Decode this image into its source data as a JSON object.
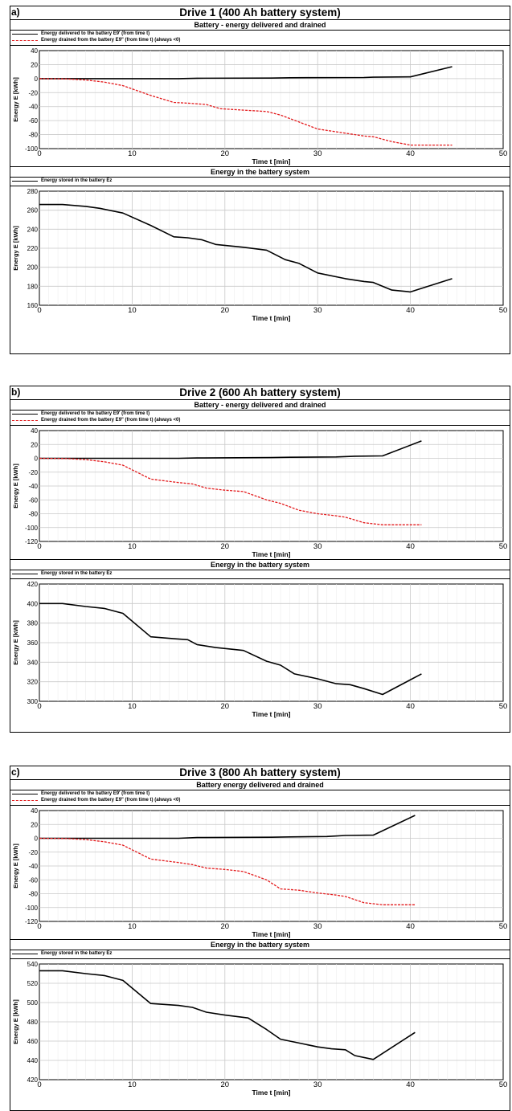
{
  "panels": [
    {
      "label": "a)",
      "title": "Drive 1 (400 Ah battery system)",
      "top_subtitle": "Battery - energy delivered and drained",
      "bottom_subtitle": "Energy in the battery system",
      "legend_top": [
        "Energy delivered to the battery E9' (from time t)",
        "Energy drained from the battery E9\" (from time t) (always <0)"
      ],
      "legend_bottom": [
        "Energy stored in the battery Ez"
      ]
    },
    {
      "label": "b)",
      "title": "Drive 2 (600 Ah battery system)",
      "top_subtitle": "Battery - energy delivered and drained",
      "bottom_subtitle": "Energy in the battery system",
      "legend_top": [
        "Energy delivered to the battery E9' (from time t)",
        "Energy drained from the battery E9\" (from time t) (always <0)"
      ],
      "legend_bottom": [
        "Energy stored in the battery Ez"
      ]
    },
    {
      "label": "c)",
      "title": "Drive 3 (800 Ah battery system)",
      "top_subtitle": "Battery energy delivered and drained",
      "bottom_subtitle": "Energy in the battery system",
      "legend_top": [
        "Energy delivered to the battery E9' (from time t)",
        "Energy drained from the battery E9\" (from time t) (always <0)"
      ],
      "legend_bottom": [
        "Energy stored in the battery Ez"
      ]
    }
  ],
  "colors": {
    "delivered": "#000000",
    "drained": "#e31a1c",
    "stored": "#000000",
    "grid": "#c8c8c8"
  },
  "chart_data": [
    {
      "type": "line",
      "panel": "a) top",
      "xlabel": "Time t [min]",
      "ylabel": "Energy E [kWh]",
      "xlim": [
        0,
        50
      ],
      "ylim": [
        -100,
        40
      ],
      "xticks": [
        0,
        10,
        20,
        30,
        40,
        50
      ],
      "yticks": [
        40,
        20,
        0,
        -20,
        -40,
        -60,
        -80,
        -100
      ],
      "grid": true,
      "legend": "top-left",
      "series": [
        {
          "name": "Energy delivered to the battery E9' (from time t)",
          "style": "solid",
          "x": [
            0,
            5,
            10,
            15,
            17,
            25,
            27,
            35,
            36,
            40,
            44.5
          ],
          "y": [
            0,
            0,
            0,
            0,
            0.5,
            0.8,
            1.2,
            1.5,
            2,
            2.5,
            17
          ]
        },
        {
          "name": "Energy drained from the battery E9\" (from time t) (always <0)",
          "style": "dashed",
          "x": [
            0,
            3,
            5,
            7,
            9,
            12,
            14.5,
            16,
            18,
            19.5,
            22,
            24.5,
            26,
            28,
            30,
            33,
            35,
            36,
            38,
            40,
            44.5
          ],
          "y": [
            0,
            -0.5,
            -2,
            -5,
            -10,
            -24,
            -34,
            -35,
            -37,
            -43,
            -45,
            -47,
            -52,
            -62,
            -72,
            -78,
            -82,
            -83,
            -90,
            -95,
            -95
          ]
        }
      ]
    },
    {
      "type": "line",
      "panel": "a) bottom",
      "xlabel": "Time t [min]",
      "ylabel": "Energy E [kWh]",
      "xlim": [
        0,
        50
      ],
      "ylim": [
        160,
        280
      ],
      "xticks": [
        0,
        10,
        20,
        30,
        40,
        50
      ],
      "yticks": [
        280,
        260,
        240,
        220,
        200,
        180,
        160
      ],
      "grid": true,
      "legend": "top-left",
      "series": [
        {
          "name": "Energy stored in the battery Ez",
          "style": "solid",
          "x": [
            0,
            2.5,
            5,
            6.5,
            9,
            12,
            14.5,
            16,
            17.5,
            19,
            22,
            24.5,
            26.5,
            28,
            30,
            33,
            35,
            36,
            38,
            40,
            44.5
          ],
          "y": [
            266,
            266,
            264,
            262,
            257,
            244,
            232,
            231,
            229,
            224,
            221,
            218,
            208,
            204,
            194,
            188,
            185,
            184,
            176,
            174,
            188
          ]
        }
      ]
    },
    {
      "type": "line",
      "panel": "b) top",
      "xlabel": "Time t [min]",
      "ylabel": "Energy E [kWh]",
      "xlim": [
        0,
        50
      ],
      "ylim": [
        -120,
        40
      ],
      "xticks": [
        0,
        10,
        20,
        30,
        40,
        50
      ],
      "yticks": [
        40,
        20,
        0,
        -20,
        -40,
        -60,
        -80,
        -100,
        -120
      ],
      "grid": true,
      "legend": "top-left",
      "series": [
        {
          "name": "Energy delivered to the battery E9' (from time t)",
          "style": "solid",
          "x": [
            0,
            5,
            10,
            15,
            17,
            25,
            27,
            32,
            34,
            37,
            41.2
          ],
          "y": [
            0,
            0,
            0,
            0,
            0.5,
            1,
            1.5,
            2,
            3,
            3.5,
            25
          ]
        },
        {
          "name": "Energy drained from the battery E9\" (from time t) (always <0)",
          "style": "dashed",
          "x": [
            0,
            3,
            5,
            7,
            9,
            12,
            15,
            16.5,
            18,
            20,
            22,
            24.5,
            26,
            28,
            30,
            32,
            33,
            35,
            37,
            40,
            41.2
          ],
          "y": [
            0,
            -0.5,
            -2,
            -5,
            -10,
            -30,
            -35,
            -37,
            -43,
            -46,
            -48,
            -60,
            -65,
            -75,
            -80,
            -83,
            -85,
            -93,
            -96,
            -96,
            -96
          ]
        }
      ]
    },
    {
      "type": "line",
      "panel": "b) bottom",
      "xlabel": "Time t [min]",
      "ylabel": "Energy E [kWh]",
      "xlim": [
        0,
        50
      ],
      "ylim": [
        300,
        420
      ],
      "xticks": [
        0,
        10,
        20,
        30,
        40,
        50
      ],
      "yticks": [
        420,
        400,
        380,
        360,
        340,
        320,
        300
      ],
      "grid": true,
      "legend": "top-left",
      "series": [
        {
          "name": "Energy stored in the battery Ez",
          "style": "solid",
          "x": [
            0,
            2.5,
            5,
            7,
            9,
            12,
            14.5,
            16,
            17,
            19,
            22,
            24.5,
            26,
            27.5,
            30,
            32,
            33.5,
            35,
            37,
            41.2
          ],
          "y": [
            400,
            400,
            397,
            395,
            390,
            366,
            364,
            363,
            358,
            355,
            352,
            341,
            337,
            328,
            323,
            318,
            317,
            313,
            307,
            328
          ]
        }
      ]
    },
    {
      "type": "line",
      "panel": "c) top",
      "xlabel": "Time t [min]",
      "ylabel": "Energy E [kWh]",
      "xlim": [
        0,
        50
      ],
      "ylim": [
        -120,
        40
      ],
      "xticks": [
        0,
        10,
        20,
        30,
        40,
        50
      ],
      "yticks": [
        40,
        20,
        0,
        -20,
        -40,
        -60,
        -80,
        -100,
        -120
      ],
      "grid": true,
      "legend": "top-left",
      "series": [
        {
          "name": "Energy delivered to the battery E9' (from time t)",
          "style": "solid",
          "x": [
            0,
            5,
            10,
            15,
            17,
            25,
            27,
            31,
            33,
            36,
            40.5
          ],
          "y": [
            0,
            0,
            0,
            0,
            1,
            1.5,
            2,
            2.5,
            4,
            4.5,
            33
          ]
        },
        {
          "name": "Energy drained from the battery E9\" (from time t) (always <0)",
          "style": "dashed",
          "x": [
            0,
            3,
            5,
            7,
            9,
            12,
            15,
            16.5,
            18,
            20,
            22,
            24.5,
            26,
            28,
            30,
            32,
            33,
            35,
            37,
            40,
            40.5
          ],
          "y": [
            0,
            -0.5,
            -2,
            -5,
            -10,
            -30,
            -35,
            -38,
            -43,
            -45,
            -48,
            -60,
            -73,
            -75,
            -79,
            -82,
            -84,
            -93,
            -96,
            -96,
            -96
          ]
        }
      ]
    },
    {
      "type": "line",
      "panel": "c) bottom",
      "xlabel": "Time t [min]",
      "ylabel": "Energy E [kWh]",
      "xlim": [
        0,
        50
      ],
      "ylim": [
        420,
        540
      ],
      "xticks": [
        0,
        10,
        20,
        30,
        40,
        50
      ],
      "yticks": [
        540,
        520,
        500,
        480,
        460,
        440,
        420
      ],
      "grid": true,
      "legend": "top-left",
      "series": [
        {
          "name": "Energy stored in the battery Ez",
          "style": "solid",
          "x": [
            0,
            2.5,
            5,
            7,
            9,
            12,
            15,
            16.5,
            18,
            20,
            22.5,
            24.5,
            26,
            28,
            30,
            31.5,
            33,
            34,
            36,
            40.5
          ],
          "y": [
            533,
            533,
            530,
            528,
            523,
            499,
            497,
            495,
            490,
            487,
            484,
            472,
            462,
            458,
            454,
            452,
            451,
            445,
            441,
            469
          ]
        }
      ]
    }
  ]
}
